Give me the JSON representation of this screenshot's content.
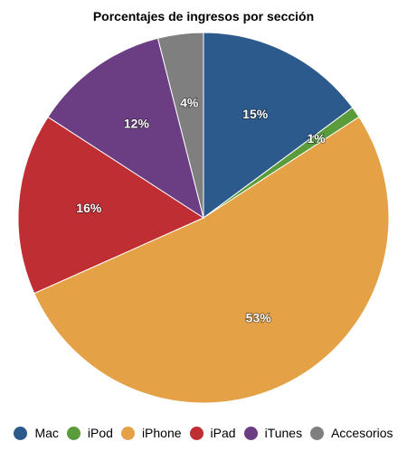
{
  "chart_data": {
    "type": "pie",
    "title": "Porcentajes de ingresos por sección",
    "categories": [
      "Mac",
      "iPod",
      "iPhone",
      "iPad",
      "iTunes",
      "Accesorios"
    ],
    "values": [
      15,
      1,
      53,
      16,
      12,
      4
    ],
    "labels": [
      "15%",
      "1%",
      "53%",
      "16%",
      "12%",
      "4%"
    ],
    "colors": [
      "#2d5a8c",
      "#5a9c3c",
      "#e4a146",
      "#bf2e33",
      "#6b3d82",
      "#7f7f7f"
    ],
    "start_angle_deg": 0,
    "direction": "clockwise",
    "legend_position": "bottom"
  }
}
